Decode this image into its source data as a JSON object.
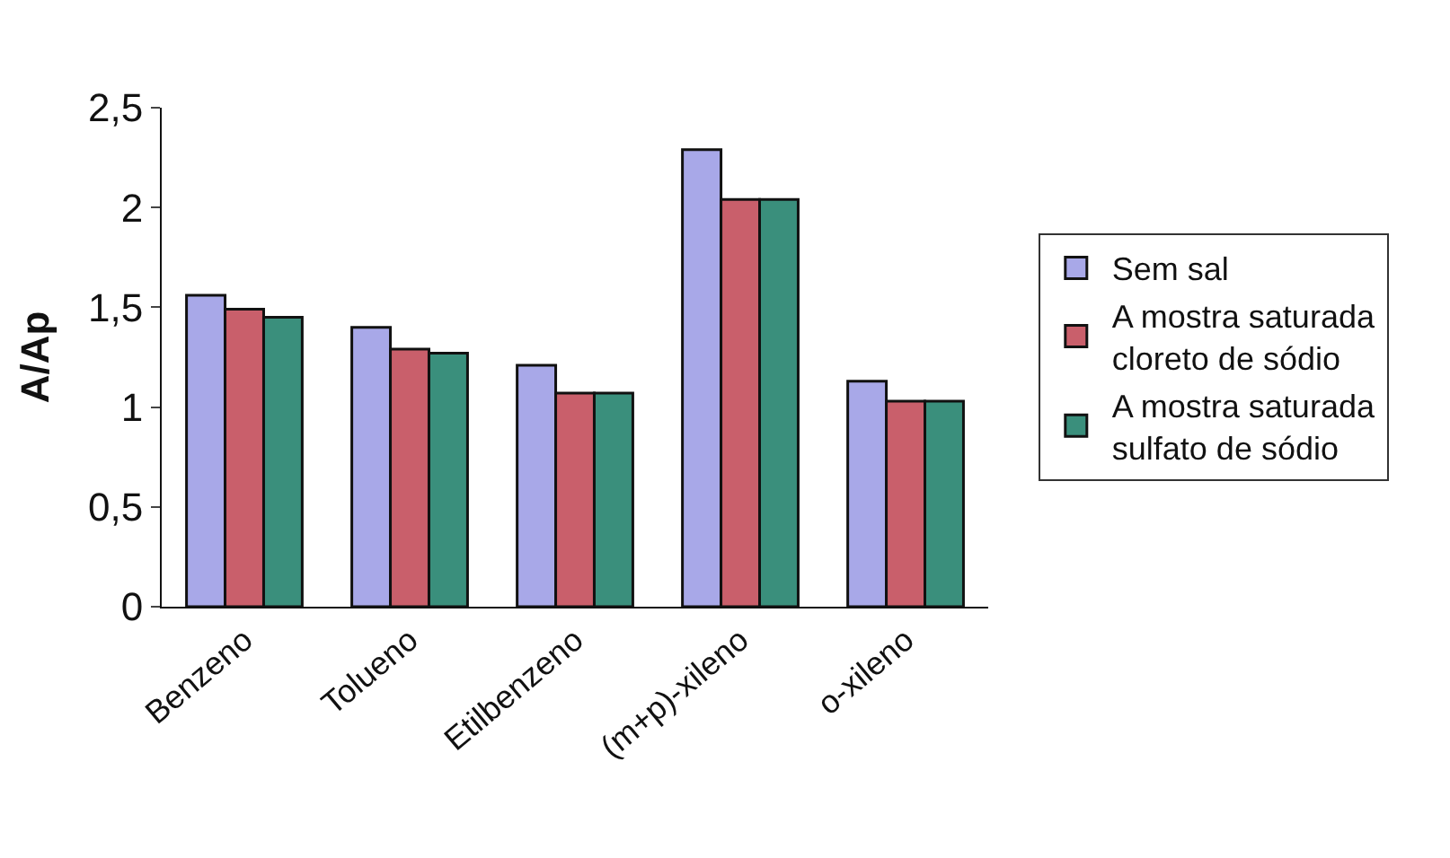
{
  "chart_data": {
    "type": "bar",
    "ylabel": "A/Ap",
    "categories": [
      "Benzeno",
      "Tolueno",
      "Etilbenzeno",
      "(m+p)-xileno",
      "o-xileno"
    ],
    "series": [
      {
        "name": "Sem sal",
        "color": "#a8a8e8",
        "values": [
          1.56,
          1.4,
          1.21,
          2.29,
          1.13
        ]
      },
      {
        "name": "A mostra saturada cloreto de sódio",
        "color": "#c95f6b",
        "values": [
          1.49,
          1.29,
          1.07,
          2.04,
          1.03
        ]
      },
      {
        "name": "A mostra saturada sulfato de sódio",
        "color": "#3a8f7c",
        "values": [
          1.45,
          1.27,
          1.07,
          2.04,
          1.03
        ]
      }
    ],
    "ylim": [
      0,
      2.5
    ],
    "yticks": [
      0,
      {
        "value": 0.5,
        "label": "0,5"
      },
      1,
      {
        "value": 1.5,
        "label": "1,5"
      },
      2,
      {
        "value": 2.5,
        "label": "2,5"
      }
    ],
    "legend": "right"
  }
}
